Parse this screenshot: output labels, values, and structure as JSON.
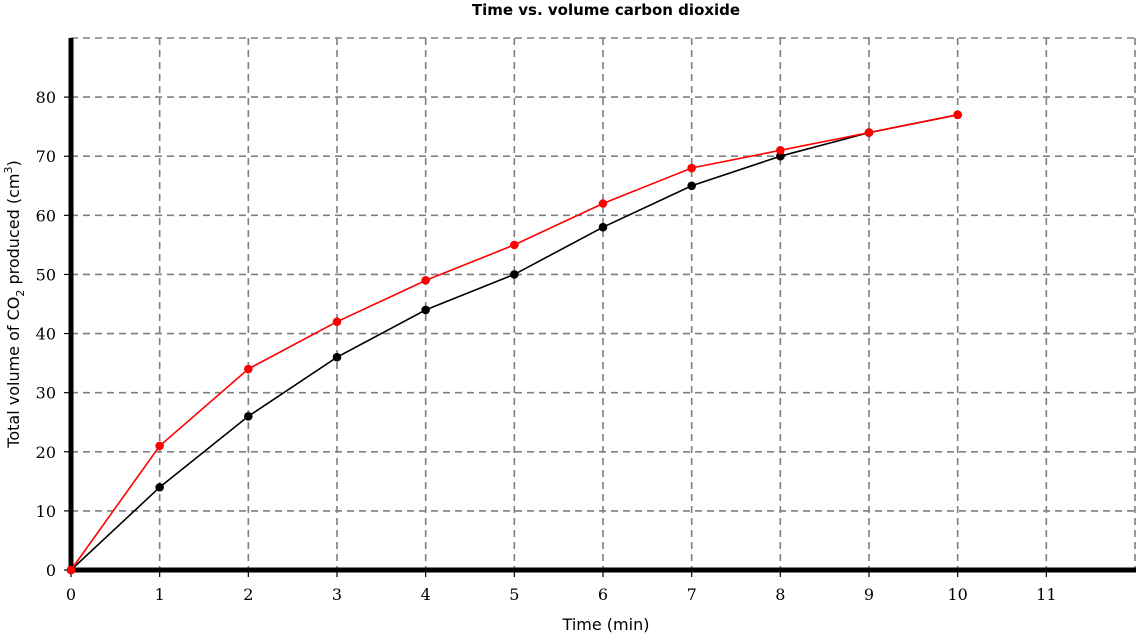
{
  "chart_data": {
    "type": "line",
    "title": "Time vs. volume carbon dioxide",
    "xlabel": "Time (min)",
    "ylabel": {
      "before": "Total volume of CO",
      "sub": "2",
      "middle": " produced (cm",
      "sup": "3",
      "after": ")"
    },
    "xlim": [
      0,
      12
    ],
    "ylim": [
      0,
      90
    ],
    "xticks": [
      0,
      1,
      2,
      3,
      4,
      5,
      6,
      7,
      8,
      9,
      10,
      11
    ],
    "yticks": [
      0,
      10,
      20,
      30,
      40,
      50,
      60,
      70,
      80
    ],
    "grid": true,
    "series": [
      {
        "color": "#000000",
        "x": [
          0,
          1,
          2,
          3,
          4,
          5,
          6,
          7,
          8,
          9,
          10
        ],
        "y": [
          0,
          14,
          26,
          36,
          44,
          50,
          58,
          65,
          70,
          74,
          77
        ]
      },
      {
        "color": "#ff0000",
        "x": [
          0,
          1,
          2,
          3,
          4,
          5,
          6,
          7,
          8,
          9,
          10
        ],
        "y": [
          0,
          21,
          34,
          42,
          49,
          55,
          62,
          68,
          71,
          74,
          77
        ]
      }
    ]
  }
}
